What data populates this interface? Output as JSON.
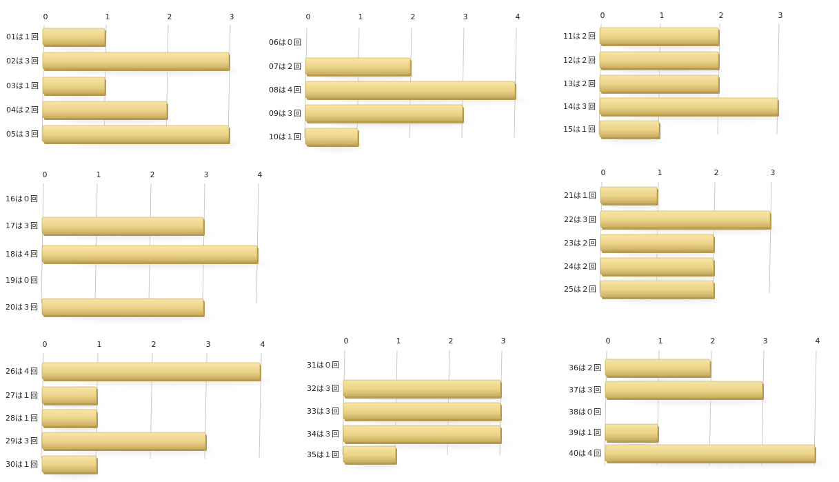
{
  "colors": {
    "bar_top": "#f7e6a6",
    "bar_mid": "#ecd48a",
    "bar_bottom": "#c9ad60",
    "bar_edge": "#b99a4e",
    "grid": "#c8c8c8",
    "shadow": "#d8d8d8"
  },
  "chart_data": [
    {
      "type": "bar",
      "orientation": "horizontal",
      "categories": [
        "01は１回",
        "02は３回",
        "03は１回",
        "04は２回",
        "05は３回"
      ],
      "values": [
        1,
        3,
        1,
        2,
        3
      ],
      "xlim": [
        0,
        3
      ],
      "ticks": [
        0,
        1,
        2,
        3
      ]
    },
    {
      "type": "bar",
      "orientation": "horizontal",
      "categories": [
        "06は０回",
        "07は２回",
        "08は４回",
        "09は３回",
        "10は１回"
      ],
      "values": [
        0,
        2,
        4,
        3,
        1
      ],
      "xlim": [
        0,
        4
      ],
      "ticks": [
        0,
        1,
        2,
        3,
        4
      ]
    },
    {
      "type": "bar",
      "orientation": "horizontal",
      "categories": [
        "11は２回",
        "12は２回",
        "13は２回",
        "14は３回",
        "15は１回"
      ],
      "values": [
        2,
        2,
        2,
        3,
        1
      ],
      "xlim": [
        0,
        3
      ],
      "ticks": [
        0,
        1,
        2,
        3
      ]
    },
    {
      "type": "bar",
      "orientation": "horizontal",
      "categories": [
        "16は０回",
        "17は３回",
        "18は４回",
        "19は０回",
        "20は３回"
      ],
      "values": [
        0,
        3,
        4,
        0,
        3
      ],
      "xlim": [
        0,
        4
      ],
      "ticks": [
        0,
        1,
        2,
        3,
        4
      ]
    },
    {
      "type": "bar",
      "orientation": "horizontal",
      "categories": [
        "21は１回",
        "22は３回",
        "23は２回",
        "24は２回",
        "25は２回"
      ],
      "values": [
        1,
        3,
        2,
        2,
        2
      ],
      "xlim": [
        0,
        3
      ],
      "ticks": [
        0,
        1,
        2,
        3
      ]
    },
    {
      "type": "bar",
      "orientation": "horizontal",
      "categories": [
        "26は４回",
        "27は１回",
        "28は１回",
        "29は３回",
        "30は１回"
      ],
      "values": [
        4,
        1,
        1,
        3,
        1
      ],
      "xlim": [
        0,
        4
      ],
      "ticks": [
        0,
        1,
        2,
        3,
        4
      ]
    },
    {
      "type": "bar",
      "orientation": "horizontal",
      "categories": [
        "31は０回",
        "32は３回",
        "33は３回",
        "34は３回",
        "35は１回"
      ],
      "values": [
        0,
        3,
        3,
        3,
        1
      ],
      "xlim": [
        0,
        3
      ],
      "ticks": [
        0,
        1,
        2,
        3
      ]
    },
    {
      "type": "bar",
      "orientation": "horizontal",
      "categories": [
        "36は２回",
        "37は３回",
        "38は０回",
        "39は１回",
        "40は４回"
      ],
      "values": [
        2,
        3,
        0,
        1,
        4
      ],
      "xlim": [
        0,
        4
      ],
      "ticks": [
        0,
        1,
        2,
        3,
        4
      ]
    }
  ]
}
